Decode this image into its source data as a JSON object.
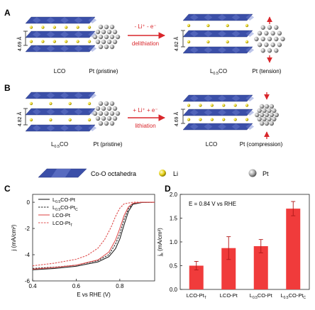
{
  "panels": {
    "A": {
      "letter": "A",
      "left_label": "LCO",
      "left_spacing": "4.69 Å",
      "pt_left_label": "Pt (pristine)",
      "arrow_top": "- Li⁺ - e⁻",
      "arrow_bottom": "delithiation",
      "right_label_main": "L",
      "right_label_sub": "0.5",
      "right_label_tail": "CO",
      "right_spacing": "4.82 Å",
      "pt_right_label": "Pt (tension)"
    },
    "B": {
      "letter": "B",
      "left_label_main": "L",
      "left_label_sub": "0.5",
      "left_label_tail": "CO",
      "left_spacing": "4.82 Å",
      "pt_left_label": "Pt (pristine)",
      "arrow_top": "+ Li⁺ + e⁻",
      "arrow_bottom": "lithiation",
      "right_label": "LCO",
      "right_spacing": "4.69 Å",
      "pt_right_label": "Pt (compression)"
    }
  },
  "legend": {
    "octahedra": "Co-O octahedra",
    "li": "Li",
    "pt": "Pt"
  },
  "colors": {
    "slab": "#3b4fa8",
    "slab_light": "#6d7fd0",
    "li": "#e6d21a",
    "pt": "#9a9a9a",
    "arrow": "#d9262b",
    "bar": "#f03b3b"
  },
  "chart_data": [
    {
      "type": "line",
      "panel": "C",
      "xlabel": "E vs RHE (V)",
      "ylabel": "j (mA/cm²)",
      "xlim": [
        0.4,
        0.96
      ],
      "ylim": [
        -6,
        0.6
      ],
      "xticks": [
        "0.4",
        "0.6",
        "0.8"
      ],
      "yticks": [
        "0",
        "-2",
        "-4",
        "-6"
      ],
      "series": [
        {
          "name_main": "L",
          "name_sub": "0.5",
          "name_tail": "CO-Pt",
          "color": "#222222",
          "dash": false,
          "points": [
            [
              0.4,
              -5.15
            ],
            [
              0.5,
              -5.05
            ],
            [
              0.6,
              -4.88
            ],
            [
              0.7,
              -4.55
            ],
            [
              0.75,
              -4.15
            ],
            [
              0.78,
              -3.55
            ],
            [
              0.8,
              -2.8
            ],
            [
              0.82,
              -1.7
            ],
            [
              0.84,
              -0.7
            ],
            [
              0.86,
              -0.15
            ],
            [
              0.9,
              -0.02
            ],
            [
              0.96,
              0.0
            ]
          ]
        },
        {
          "name_main": "L",
          "name_sub": "0.5",
          "name_tail": "CO-Pt",
          "name_tail_sub": "C",
          "color": "#222222",
          "dash": true,
          "points": [
            [
              0.4,
              -5.05
            ],
            [
              0.5,
              -4.95
            ],
            [
              0.6,
              -4.8
            ],
            [
              0.7,
              -4.45
            ],
            [
              0.75,
              -4.0
            ],
            [
              0.78,
              -3.2
            ],
            [
              0.8,
              -2.4
            ],
            [
              0.82,
              -1.3
            ],
            [
              0.84,
              -0.5
            ],
            [
              0.86,
              -0.1
            ],
            [
              0.9,
              -0.02
            ],
            [
              0.96,
              0.0
            ]
          ]
        },
        {
          "name_main": "LCO-Pt",
          "color": "#e05050",
          "dash": false,
          "points": [
            [
              0.4,
              -5.1
            ],
            [
              0.5,
              -4.98
            ],
            [
              0.6,
              -4.8
            ],
            [
              0.7,
              -4.4
            ],
            [
              0.75,
              -3.8
            ],
            [
              0.78,
              -2.9
            ],
            [
              0.8,
              -2.0
            ],
            [
              0.82,
              -1.0
            ],
            [
              0.84,
              -0.35
            ],
            [
              0.86,
              -0.08
            ],
            [
              0.9,
              0.0
            ],
            [
              0.96,
              0.0
            ]
          ]
        },
        {
          "name_main": "LCO-Pt",
          "name_tail_sub": "T",
          "color": "#e05050",
          "dash": true,
          "points": [
            [
              0.4,
              -4.85
            ],
            [
              0.5,
              -4.65
            ],
            [
              0.6,
              -4.35
            ],
            [
              0.65,
              -4.05
            ],
            [
              0.7,
              -3.5
            ],
            [
              0.73,
              -2.85
            ],
            [
              0.76,
              -1.9
            ],
            [
              0.78,
              -1.1
            ],
            [
              0.8,
              -0.45
            ],
            [
              0.82,
              -0.12
            ],
            [
              0.86,
              0.0
            ],
            [
              0.96,
              0.0
            ]
          ]
        }
      ]
    },
    {
      "type": "bar",
      "panel": "D",
      "annotation": "E = 0.84 V vs RHE",
      "ylabel_main": "j",
      "ylabel_sub": "k",
      "ylabel_tail": " (mA/cm²)",
      "ylim": [
        0,
        2.0
      ],
      "yticks": [
        "0.0",
        "0.5",
        "1.0",
        "1.5",
        "2.0"
      ],
      "categories": [
        {
          "main": "LCO-Pt",
          "sub": "T",
          "tail": ""
        },
        {
          "main": "LCO-Pt",
          "sub": "",
          "tail": ""
        },
        {
          "main": "L",
          "sub": "0.5",
          "tail": "CO-Pt"
        },
        {
          "main": "L",
          "sub": "0.5",
          "tail": "CO-Pt",
          "tail_sub": "C"
        }
      ],
      "values": [
        0.5,
        0.87,
        0.91,
        1.7
      ],
      "errors": [
        0.09,
        0.24,
        0.14,
        0.15
      ]
    }
  ]
}
